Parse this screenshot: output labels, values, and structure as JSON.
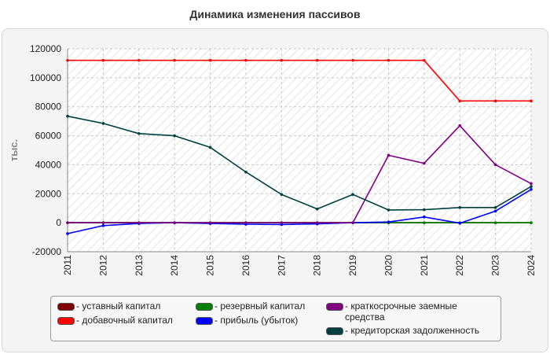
{
  "title": "Динамика изменения пассивов",
  "chart_data": {
    "type": "line",
    "title": "Динамика изменения пассивов",
    "xlabel": "",
    "ylabel": "тыс.",
    "ylim": [
      -20000,
      120000
    ],
    "yticks": [
      -20000,
      0,
      20000,
      40000,
      60000,
      80000,
      100000,
      120000
    ],
    "x": [
      "2011",
      "2012",
      "2013",
      "2014",
      "2015",
      "2016",
      "2017",
      "2018",
      "2019",
      "2020",
      "2021",
      "2022",
      "2023",
      "2024"
    ],
    "grid": true,
    "legend_position": "bottom",
    "series": [
      {
        "name": "- уставный капитал",
        "color": "#800000",
        "values": [
          0,
          0,
          0,
          0,
          0,
          0,
          0,
          0,
          0,
          0,
          0,
          0,
          0,
          0
        ]
      },
      {
        "name": "- добавочный капитал",
        "color": "#ff0000",
        "values": [
          112000,
          112000,
          112000,
          112000,
          112000,
          112000,
          112000,
          112000,
          112000,
          112000,
          112000,
          84000,
          84000,
          84000
        ]
      },
      {
        "name": "- резервный капитал",
        "color": "#008000",
        "values": [
          0,
          0,
          0,
          0,
          0,
          0,
          0,
          0,
          0,
          0,
          0,
          0,
          0,
          0
        ]
      },
      {
        "name": "- прибыль (убыток)",
        "color": "#0000ff",
        "values": [
          -7500,
          -2000,
          -500,
          0,
          -500,
          -1000,
          -1200,
          -800,
          0,
          500,
          4000,
          -300,
          8000,
          23000
        ]
      },
      {
        "name": "- краткосрочные заемные средства",
        "color": "#800080",
        "values": [
          0,
          0,
          0,
          0,
          0,
          0,
          0,
          0,
          0,
          46500,
          41000,
          67000,
          40000,
          27000
        ]
      },
      {
        "name": "- кредиторская задолженность",
        "color": "#004040",
        "values": [
          73500,
          68500,
          61500,
          60000,
          52000,
          35000,
          19500,
          9500,
          19500,
          8800,
          9000,
          10500,
          10500,
          25000
        ]
      }
    ]
  }
}
